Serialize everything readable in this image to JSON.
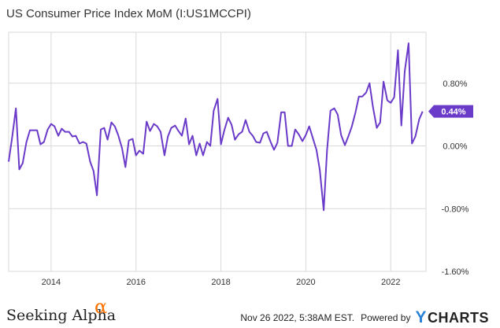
{
  "title": "US Consumer Price Index MoM (I:US1MCCPI)",
  "footer": {
    "timestamp": "Nov 26 2022, 5:38AM EST.",
    "powered_by": "Powered by",
    "ycharts_y": "Y",
    "ycharts_rest": "CHARTS",
    "sa_text": "Seeking Alpha",
    "sa_alpha": "α"
  },
  "colors": {
    "line": "#6a3ac9",
    "grid": "#d9d9d9",
    "axis_text": "#333333",
    "label_bg": "#6a3ac9",
    "label_text": "#ffffff"
  },
  "chart_data": {
    "type": "line",
    "x_tick_labels": [
      "2014",
      "2016",
      "2018",
      "2020",
      "2022"
    ],
    "x_tick_values": [
      2014,
      2016,
      2018,
      2020,
      2022
    ],
    "xlim": [
      2013.0,
      2022.83
    ],
    "y_tick_labels": [
      "0.80%",
      "0.00%",
      "-0.80%",
      "-1.60%"
    ],
    "y_tick_values": [
      0.8,
      0.0,
      -0.8,
      -1.6
    ],
    "ylim": [
      -1.6,
      1.45
    ],
    "grid": true,
    "last_value_label": "0.44%",
    "series": [
      {
        "x": [
          2013.0,
          2013.08,
          2013.17,
          2013.25,
          2013.33,
          2013.42,
          2013.5,
          2013.58,
          2013.67,
          2013.75,
          2013.83,
          2013.92,
          2014.0,
          2014.08,
          2014.17,
          2014.25,
          2014.33,
          2014.42,
          2014.5,
          2014.58,
          2014.67,
          2014.75,
          2014.83,
          2014.92,
          2015.0,
          2015.08,
          2015.17,
          2015.25,
          2015.33,
          2015.42,
          2015.5,
          2015.58,
          2015.67,
          2015.75,
          2015.83,
          2015.92,
          2016.0,
          2016.08,
          2016.17,
          2016.25,
          2016.33,
          2016.42,
          2016.5,
          2016.58,
          2016.67,
          2016.75,
          2016.83,
          2016.92,
          2017.0,
          2017.08,
          2017.17,
          2017.25,
          2017.33,
          2017.42,
          2017.5,
          2017.58,
          2017.67,
          2017.75,
          2017.83,
          2017.92,
          2018.0,
          2018.08,
          2018.17,
          2018.25,
          2018.33,
          2018.42,
          2018.5,
          2018.58,
          2018.67,
          2018.75,
          2018.83,
          2018.92,
          2019.0,
          2019.08,
          2019.17,
          2019.25,
          2019.33,
          2019.42,
          2019.5,
          2019.58,
          2019.67,
          2019.75,
          2019.83,
          2019.92,
          2020.0,
          2020.08,
          2020.17,
          2020.25,
          2020.33,
          2020.42,
          2020.5,
          2020.58,
          2020.67,
          2020.75,
          2020.83,
          2020.92,
          2021.0,
          2021.08,
          2021.17,
          2021.25,
          2021.33,
          2021.42,
          2021.5,
          2021.58,
          2021.67,
          2021.75,
          2021.83,
          2021.92,
          2022.0,
          2022.08,
          2022.17,
          2022.25,
          2022.33,
          2022.42,
          2022.5,
          2022.58,
          2022.67,
          2022.75
        ],
        "values": [
          -0.2,
          0.1,
          0.48,
          -0.3,
          -0.22,
          0.05,
          0.2,
          0.2,
          0.2,
          0.02,
          0.05,
          0.21,
          0.28,
          0.25,
          0.13,
          0.22,
          0.18,
          0.18,
          0.12,
          0.13,
          0.03,
          0.05,
          0.03,
          -0.2,
          -0.32,
          -0.63,
          0.21,
          0.23,
          0.08,
          0.3,
          0.25,
          0.14,
          -0.03,
          -0.27,
          0.07,
          0.09,
          -0.12,
          -0.06,
          -0.1,
          0.31,
          0.19,
          0.28,
          0.25,
          0.18,
          -0.12,
          0.12,
          0.23,
          0.26,
          0.19,
          0.13,
          0.35,
          0.02,
          0.13,
          -0.12,
          0.03,
          -0.12,
          0.05,
          0.0,
          0.45,
          0.6,
          0.02,
          0.2,
          0.36,
          0.27,
          0.08,
          0.15,
          0.18,
          0.33,
          0.18,
          0.13,
          0.05,
          0.04,
          0.16,
          0.18,
          0.05,
          -0.05,
          0.04,
          0.43,
          0.43,
          0.0,
          0.0,
          0.21,
          0.15,
          0.06,
          0.14,
          0.25,
          0.09,
          -0.05,
          -0.31,
          -0.82,
          -0.05,
          0.45,
          0.48,
          0.4,
          0.14,
          0.01,
          0.12,
          0.24,
          0.43,
          0.63,
          0.63,
          0.68,
          0.8,
          0.5,
          0.23,
          0.3,
          0.82,
          0.58,
          0.55,
          0.62,
          1.22,
          0.26,
          0.95,
          1.31,
          0.03,
          0.12,
          0.34,
          0.44
        ]
      }
    ]
  }
}
